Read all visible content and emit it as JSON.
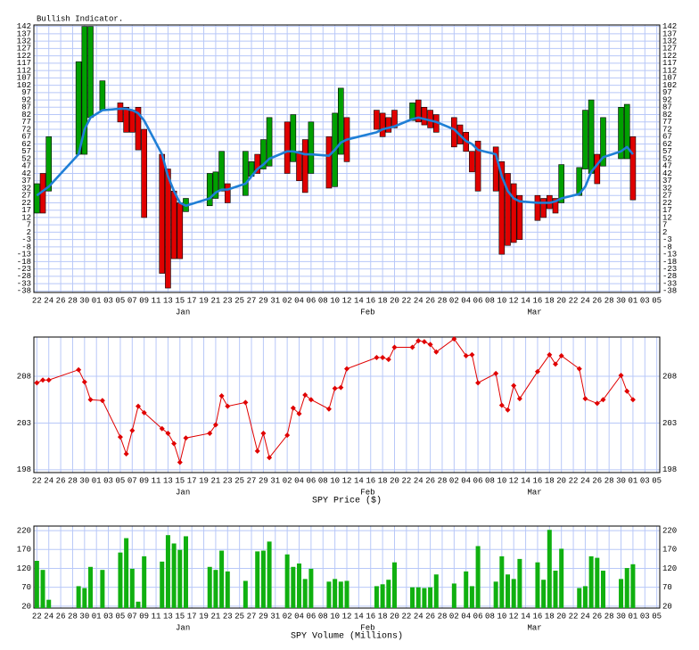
{
  "chart_data": [
    {
      "type": "candlestick",
      "title": "Bullish Indicator.",
      "x": [
        0,
        1,
        2,
        7,
        8,
        9,
        11,
        14,
        15,
        16,
        17,
        18,
        21,
        22,
        23,
        24,
        25,
        29,
        30,
        31,
        32,
        35,
        36,
        37,
        38,
        39,
        42,
        43,
        44,
        45,
        46,
        49,
        50,
        51,
        52,
        57,
        58,
        59,
        60,
        63,
        64,
        65,
        66,
        67,
        70,
        71,
        72,
        73,
        74,
        77,
        78,
        79,
        80,
        81,
        84,
        85,
        86,
        87,
        88,
        91,
        92,
        93,
        94,
        95,
        98,
        99,
        100
      ],
      "open": [
        15,
        42,
        30,
        55,
        55,
        80,
        85,
        90,
        87,
        85,
        87,
        72,
        55,
        45,
        30,
        22,
        16,
        20,
        25,
        30,
        35,
        27,
        40,
        55,
        45,
        47,
        77,
        50,
        57,
        65,
        42,
        67,
        33,
        55,
        80,
        85,
        83,
        80,
        85,
        78,
        92,
        87,
        85,
        82,
        80,
        75,
        70,
        57,
        64,
        60,
        50,
        42,
        35,
        27,
        27,
        25,
        27,
        25,
        22,
        27,
        45,
        42,
        55,
        47,
        52,
        52,
        67
      ],
      "close": [
        35,
        15,
        67,
        118,
        142,
        142,
        105,
        77,
        70,
        70,
        58,
        12,
        -26,
        -36,
        -16,
        -16,
        25,
        42,
        43,
        57,
        22,
        57,
        50,
        42,
        65,
        80,
        42,
        82,
        37,
        29,
        77,
        32,
        83,
        100,
        50,
        72,
        67,
        70,
        73,
        90,
        77,
        75,
        73,
        70,
        60,
        62,
        57,
        43,
        30,
        30,
        -13,
        -7,
        -5,
        -3,
        10,
        12,
        18,
        15,
        48,
        46,
        85,
        92,
        35,
        80,
        87,
        89,
        24
      ],
      "up_color": "#00a000",
      "down_color": "#e00000",
      "average": {
        "color": "#1f7fd6",
        "values": [
          27,
          30,
          33,
          55,
          72,
          80,
          85,
          86,
          86,
          85,
          83,
          78,
          55,
          40,
          30,
          22,
          20,
          25,
          29,
          31,
          31,
          35,
          40,
          45,
          48,
          52,
          57,
          57,
          56,
          55,
          55,
          54,
          58,
          63,
          65,
          70,
          72,
          73,
          74,
          79,
          80,
          79,
          78,
          77,
          72,
          68,
          64,
          62,
          58,
          55,
          40,
          30,
          25,
          23,
          22,
          22,
          22,
          23,
          25,
          28,
          33,
          43,
          48,
          53,
          57,
          60,
          55
        ]
      },
      "xlim": [
        -0.5,
        104.5
      ],
      "xticks": [
        {
          "value": 0,
          "label": "22"
        },
        {
          "value": 2,
          "label": "24"
        },
        {
          "value": 4,
          "label": "26"
        },
        {
          "value": 6,
          "label": "28"
        },
        {
          "value": 8,
          "label": "30"
        },
        {
          "value": 10,
          "label": "01"
        },
        {
          "value": 12,
          "label": "03"
        },
        {
          "value": 14,
          "label": "05"
        },
        {
          "value": 16,
          "label": "07"
        },
        {
          "value": 18,
          "label": "09"
        },
        {
          "value": 20,
          "label": "11"
        },
        {
          "value": 22,
          "label": "13"
        },
        {
          "value": 24,
          "label": "15"
        },
        {
          "value": 26,
          "label": "17"
        },
        {
          "value": 28,
          "label": "19"
        },
        {
          "value": 30,
          "label": "21"
        },
        {
          "value": 32,
          "label": "23"
        },
        {
          "value": 34,
          "label": "25"
        },
        {
          "value": 36,
          "label": "27"
        },
        {
          "value": 38,
          "label": "29"
        },
        {
          "value": 40,
          "label": "31"
        },
        {
          "value": 42,
          "label": "02"
        },
        {
          "value": 44,
          "label": "04"
        },
        {
          "value": 46,
          "label": "06"
        },
        {
          "value": 48,
          "label": "08"
        },
        {
          "value": 50,
          "label": "10"
        },
        {
          "value": 52,
          "label": "12"
        },
        {
          "value": 54,
          "label": "14"
        },
        {
          "value": 56,
          "label": "16"
        },
        {
          "value": 58,
          "label": "18"
        },
        {
          "value": 60,
          "label": "20"
        },
        {
          "value": 62,
          "label": "22"
        },
        {
          "value": 64,
          "label": "24"
        },
        {
          "value": 66,
          "label": "26"
        },
        {
          "value": 68,
          "label": "28"
        },
        {
          "value": 70,
          "label": "02"
        },
        {
          "value": 72,
          "label": "04"
        },
        {
          "value": 74,
          "label": "06"
        },
        {
          "value": 76,
          "label": "08"
        },
        {
          "value": 78,
          "label": "10"
        },
        {
          "value": 80,
          "label": "12"
        },
        {
          "value": 82,
          "label": "14"
        },
        {
          "value": 84,
          "label": "16"
        },
        {
          "value": 86,
          "label": "18"
        },
        {
          "value": 88,
          "label": "20"
        },
        {
          "value": 90,
          "label": "22"
        },
        {
          "value": 92,
          "label": "24"
        },
        {
          "value": 94,
          "label": "26"
        },
        {
          "value": 96,
          "label": "28"
        },
        {
          "value": 98,
          "label": "30"
        },
        {
          "value": 100,
          "label": "01"
        },
        {
          "value": 102,
          "label": "03"
        },
        {
          "value": 104,
          "label": "05"
        }
      ],
      "months": [
        "Jan",
        "Feb",
        "Mar"
      ],
      "ylim": [
        -39,
        143
      ],
      "yticks": [
        -38,
        -33,
        -28,
        -23,
        -18,
        -13,
        -8,
        -3,
        2,
        7,
        12,
        17,
        22,
        27,
        32,
        37,
        42,
        47,
        52,
        57,
        62,
        67,
        72,
        77,
        82,
        87,
        92,
        97,
        102,
        107,
        112,
        117,
        122,
        127,
        132,
        137,
        142
      ],
      "grid": true
    },
    {
      "type": "line",
      "x_label": "SPY Price ($)",
      "x": [
        0,
        1,
        2,
        7,
        8,
        9,
        11,
        14,
        15,
        16,
        17,
        18,
        21,
        22,
        23,
        24,
        25,
        29,
        30,
        31,
        32,
        35,
        37,
        38,
        39,
        42,
        43,
        44,
        45,
        46,
        49,
        50,
        51,
        52,
        57,
        58,
        59,
        60,
        63,
        64,
        65,
        66,
        67,
        70,
        72,
        73,
        74,
        77,
        78,
        79,
        80,
        81,
        84,
        86,
        87,
        88,
        91,
        92,
        94,
        95,
        98,
        99,
        100
      ],
      "values": [
        207.3,
        207.6,
        207.6,
        208.7,
        207.4,
        205.5,
        205.4,
        201.5,
        199.7,
        202.2,
        204.8,
        204.1,
        202.4,
        201.9,
        200.8,
        198.8,
        201.4,
        201.9,
        202.8,
        205.9,
        204.8,
        205.2,
        200.0,
        201.9,
        199.3,
        201.7,
        204.6,
        204.0,
        206.0,
        205.5,
        204.5,
        206.7,
        206.8,
        208.8,
        210.0,
        210.0,
        209.8,
        211.1,
        211.1,
        211.8,
        211.7,
        211.4,
        210.6,
        212.0,
        210.2,
        210.3,
        207.3,
        208.3,
        204.9,
        204.4,
        207.0,
        205.6,
        208.5,
        210.3,
        209.3,
        210.2,
        208.8,
        205.6,
        205.1,
        205.5,
        208.1,
        206.4,
        205.5
      ],
      "color": "#e00000",
      "xlim": [
        -0.5,
        104.5
      ],
      "xticks": [
        {
          "value": 0,
          "label": "22"
        },
        {
          "value": 2,
          "label": "24"
        },
        {
          "value": 4,
          "label": "26"
        },
        {
          "value": 6,
          "label": "28"
        },
        {
          "value": 8,
          "label": "30"
        },
        {
          "value": 10,
          "label": "01"
        },
        {
          "value": 12,
          "label": "03"
        },
        {
          "value": 14,
          "label": "05"
        },
        {
          "value": 16,
          "label": "07"
        },
        {
          "value": 18,
          "label": "09"
        },
        {
          "value": 20,
          "label": "11"
        },
        {
          "value": 22,
          "label": "13"
        },
        {
          "value": 24,
          "label": "15"
        },
        {
          "value": 26,
          "label": "17"
        },
        {
          "value": 28,
          "label": "19"
        },
        {
          "value": 30,
          "label": "21"
        },
        {
          "value": 32,
          "label": "23"
        },
        {
          "value": 34,
          "label": "25"
        },
        {
          "value": 36,
          "label": "27"
        },
        {
          "value": 38,
          "label": "29"
        },
        {
          "value": 40,
          "label": "31"
        },
        {
          "value": 42,
          "label": "02"
        },
        {
          "value": 44,
          "label": "04"
        },
        {
          "value": 46,
          "label": "06"
        },
        {
          "value": 48,
          "label": "08"
        },
        {
          "value": 50,
          "label": "10"
        },
        {
          "value": 52,
          "label": "12"
        },
        {
          "value": 54,
          "label": "14"
        },
        {
          "value": 56,
          "label": "16"
        },
        {
          "value": 58,
          "label": "18"
        },
        {
          "value": 60,
          "label": "20"
        },
        {
          "value": 62,
          "label": "22"
        },
        {
          "value": 64,
          "label": "24"
        },
        {
          "value": 66,
          "label": "26"
        },
        {
          "value": 68,
          "label": "28"
        },
        {
          "value": 70,
          "label": "02"
        },
        {
          "value": 72,
          "label": "04"
        },
        {
          "value": 74,
          "label": "06"
        },
        {
          "value": 76,
          "label": "08"
        },
        {
          "value": 78,
          "label": "10"
        },
        {
          "value": 80,
          "label": "12"
        },
        {
          "value": 82,
          "label": "14"
        },
        {
          "value": 84,
          "label": "16"
        },
        {
          "value": 86,
          "label": "18"
        },
        {
          "value": 88,
          "label": "20"
        },
        {
          "value": 90,
          "label": "22"
        },
        {
          "value": 92,
          "label": "24"
        },
        {
          "value": 94,
          "label": "26"
        },
        {
          "value": 96,
          "label": "28"
        },
        {
          "value": 98,
          "label": "30"
        },
        {
          "value": 100,
          "label": "01"
        },
        {
          "value": 102,
          "label": "03"
        },
        {
          "value": 104,
          "label": "05"
        }
      ],
      "months": [
        "Jan",
        "Feb",
        "Mar"
      ],
      "ylim": [
        197.7,
        212.2
      ],
      "yticks": [
        198,
        203,
        208
      ],
      "grid": true
    },
    {
      "type": "bar",
      "x_label": "SPY Volume (Millions)",
      "x": [
        0,
        1,
        2,
        7,
        8,
        9,
        11,
        14,
        15,
        16,
        17,
        18,
        21,
        22,
        23,
        24,
        25,
        29,
        30,
        31,
        32,
        35,
        37,
        38,
        39,
        42,
        43,
        44,
        45,
        46,
        49,
        50,
        51,
        52,
        57,
        58,
        59,
        60,
        63,
        64,
        65,
        66,
        67,
        70,
        72,
        73,
        74,
        77,
        78,
        79,
        80,
        81,
        84,
        85,
        86,
        87,
        88,
        91,
        92,
        93,
        94,
        95,
        98,
        99,
        100
      ],
      "values": [
        140,
        116,
        37,
        73,
        68,
        124,
        116,
        162,
        200,
        119,
        32,
        152,
        138,
        208,
        186,
        169,
        205,
        124,
        116,
        167,
        112,
        87,
        165,
        167,
        191,
        157,
        124,
        133,
        92,
        119,
        85,
        92,
        85,
        87,
        73,
        78,
        90,
        136,
        70,
        70,
        68,
        70,
        104,
        80,
        112,
        73,
        179,
        85,
        152,
        104,
        92,
        145,
        136,
        90,
        222,
        114,
        172,
        68,
        73,
        152,
        148,
        114,
        92,
        121,
        131
      ],
      "color": "#10b010",
      "xlim": [
        -0.5,
        104.5
      ],
      "xticks": [
        {
          "value": 0,
          "label": "22"
        },
        {
          "value": 2,
          "label": "24"
        },
        {
          "value": 4,
          "label": "26"
        },
        {
          "value": 6,
          "label": "28"
        },
        {
          "value": 8,
          "label": "30"
        },
        {
          "value": 10,
          "label": "01"
        },
        {
          "value": 12,
          "label": "03"
        },
        {
          "value": 14,
          "label": "05"
        },
        {
          "value": 16,
          "label": "07"
        },
        {
          "value": 18,
          "label": "09"
        },
        {
          "value": 20,
          "label": "11"
        },
        {
          "value": 22,
          "label": "13"
        },
        {
          "value": 24,
          "label": "15"
        },
        {
          "value": 26,
          "label": "17"
        },
        {
          "value": 28,
          "label": "19"
        },
        {
          "value": 30,
          "label": "21"
        },
        {
          "value": 32,
          "label": "23"
        },
        {
          "value": 34,
          "label": "25"
        },
        {
          "value": 36,
          "label": "27"
        },
        {
          "value": 38,
          "label": "29"
        },
        {
          "value": 40,
          "label": "31"
        },
        {
          "value": 42,
          "label": "02"
        },
        {
          "value": 44,
          "label": "04"
        },
        {
          "value": 46,
          "label": "06"
        },
        {
          "value": 48,
          "label": "08"
        },
        {
          "value": 50,
          "label": "10"
        },
        {
          "value": 52,
          "label": "12"
        },
        {
          "value": 54,
          "label": "14"
        },
        {
          "value": 56,
          "label": "16"
        },
        {
          "value": 58,
          "label": "18"
        },
        {
          "value": 60,
          "label": "20"
        },
        {
          "value": 62,
          "label": "22"
        },
        {
          "value": 64,
          "label": "24"
        },
        {
          "value": 66,
          "label": "26"
        },
        {
          "value": 68,
          "label": "28"
        },
        {
          "value": 70,
          "label": "02"
        },
        {
          "value": 72,
          "label": "04"
        },
        {
          "value": 74,
          "label": "06"
        },
        {
          "value": 76,
          "label": "08"
        },
        {
          "value": 78,
          "label": "10"
        },
        {
          "value": 80,
          "label": "12"
        },
        {
          "value": 82,
          "label": "14"
        },
        {
          "value": 84,
          "label": "16"
        },
        {
          "value": 86,
          "label": "18"
        },
        {
          "value": 88,
          "label": "20"
        },
        {
          "value": 90,
          "label": "22"
        },
        {
          "value": 92,
          "label": "24"
        },
        {
          "value": 94,
          "label": "26"
        },
        {
          "value": 96,
          "label": "28"
        },
        {
          "value": 98,
          "label": "30"
        },
        {
          "value": 100,
          "label": "01"
        },
        {
          "value": 102,
          "label": "03"
        },
        {
          "value": 104,
          "label": "05"
        }
      ],
      "months": [
        "Jan",
        "Feb",
        "Mar"
      ],
      "ylim": [
        15,
        232
      ],
      "yticks": [
        20,
        70,
        120,
        170,
        220
      ],
      "grid": true
    }
  ]
}
